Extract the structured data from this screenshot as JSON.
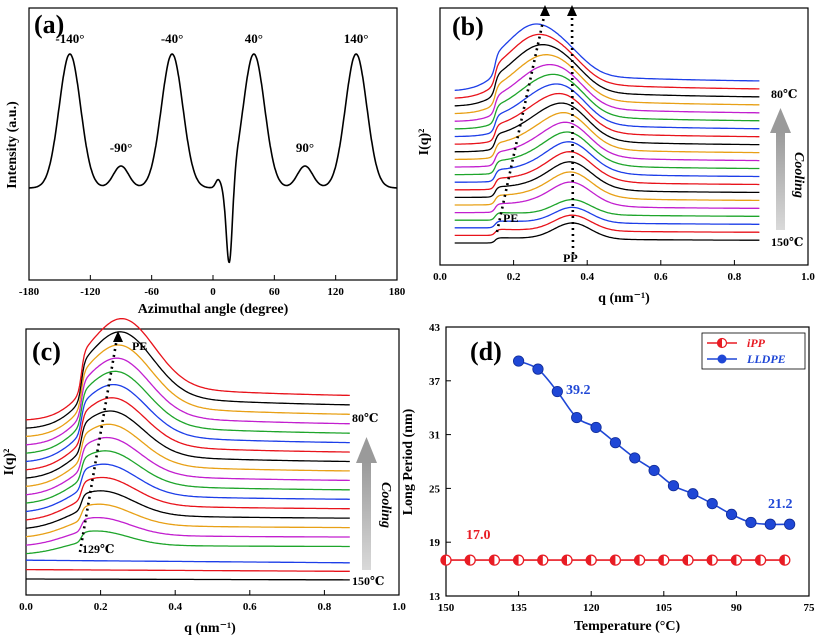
{
  "chart_data": [
    {
      "id": "a",
      "type": "line",
      "panel_label": "(a)",
      "xlabel": "Azimuthal angle (degree)",
      "ylabel": "Intensity (a.u.)",
      "xlim": [
        -180,
        180
      ],
      "xticks": [
        "-180",
        "-120",
        "-60",
        "0",
        "60",
        "120",
        "180"
      ],
      "peaks": [
        {
          "x": -140,
          "label": "-140°"
        },
        {
          "x": -90,
          "label": "-90°"
        },
        {
          "x": -40,
          "label": "-40°"
        },
        {
          "x": 40,
          "label": "40°"
        },
        {
          "x": 90,
          "label": "90°"
        },
        {
          "x": 140,
          "label": "140°"
        }
      ],
      "series": [
        {
          "name": "Azimuthal intensity",
          "color": "#000000"
        }
      ]
    },
    {
      "id": "b",
      "type": "line",
      "panel_label": "(b)",
      "xlabel": "q (nm⁻¹)",
      "ylabel": "I(q)²",
      "xlim": [
        0.0,
        1.0
      ],
      "xticks": [
        "0.0",
        "0.2",
        "0.4",
        "0.6",
        "0.8",
        "1.0"
      ],
      "annotations": {
        "pe": "PE",
        "pp": "PP",
        "top_temp": "80℃",
        "bottom_temp": "150℃",
        "cooling": "Cooling"
      },
      "curve_count": 21,
      "colors": [
        "#000000",
        "#e8131b",
        "#1d3ee8",
        "#1ea52b",
        "#c21fcf",
        "#e8a016"
      ]
    },
    {
      "id": "c",
      "type": "line",
      "panel_label": "(c)",
      "xlabel": "q (nm⁻¹)",
      "ylabel": "I(q)²",
      "xlim": [
        0.0,
        1.0
      ],
      "xticks": [
        "0.0",
        "0.2",
        "0.4",
        "0.6",
        "0.8",
        "1.0"
      ],
      "annotations": {
        "pe": "PE",
        "onset": "129℃",
        "top_temp": "80℃",
        "bottom_temp": "150℃",
        "cooling": "Cooling"
      },
      "curve_count": 20,
      "colors": [
        "#000000",
        "#e8131b",
        "#1d3ee8",
        "#1ea52b",
        "#c21fcf",
        "#e8a016"
      ]
    },
    {
      "id": "d",
      "type": "scatter",
      "panel_label": "(d)",
      "xlabel": "Temperature (°C)",
      "ylabel": "Long Period (nm)",
      "xlim": [
        150,
        75
      ],
      "ylim": [
        13,
        43
      ],
      "xticks": [
        150,
        135,
        120,
        105,
        90,
        75
      ],
      "yticks": [
        13,
        19,
        25,
        31,
        37,
        43
      ],
      "series": [
        {
          "name": "iPP",
          "color": "#e81c24",
          "x": [
            150,
            145,
            140,
            135,
            130,
            125,
            120,
            115,
            110,
            105,
            100,
            95,
            90,
            85,
            80
          ],
          "y": [
            17.0,
            17.0,
            17.0,
            17.0,
            17.0,
            17.0,
            17.0,
            17.0,
            17.0,
            17.0,
            17.0,
            17.0,
            17.0,
            17.0,
            17.0
          ]
        },
        {
          "name": "LLDPE",
          "color": "#1f47d6",
          "x": [
            135,
            131,
            127,
            123,
            119,
            115,
            111,
            107,
            103,
            99,
            95,
            91,
            87,
            83,
            79
          ],
          "y": [
            39.2,
            38.3,
            35.8,
            32.9,
            31.8,
            30.1,
            28.4,
            27.0,
            25.3,
            24.4,
            23.3,
            22.1,
            21.2,
            21.0,
            21.0
          ]
        }
      ],
      "value_labels": [
        {
          "text": "39.2",
          "color": "#1f47d6"
        },
        {
          "text": "21.2",
          "color": "#1f47d6"
        },
        {
          "text": "17.0",
          "color": "#e81c24"
        }
      ]
    }
  ]
}
